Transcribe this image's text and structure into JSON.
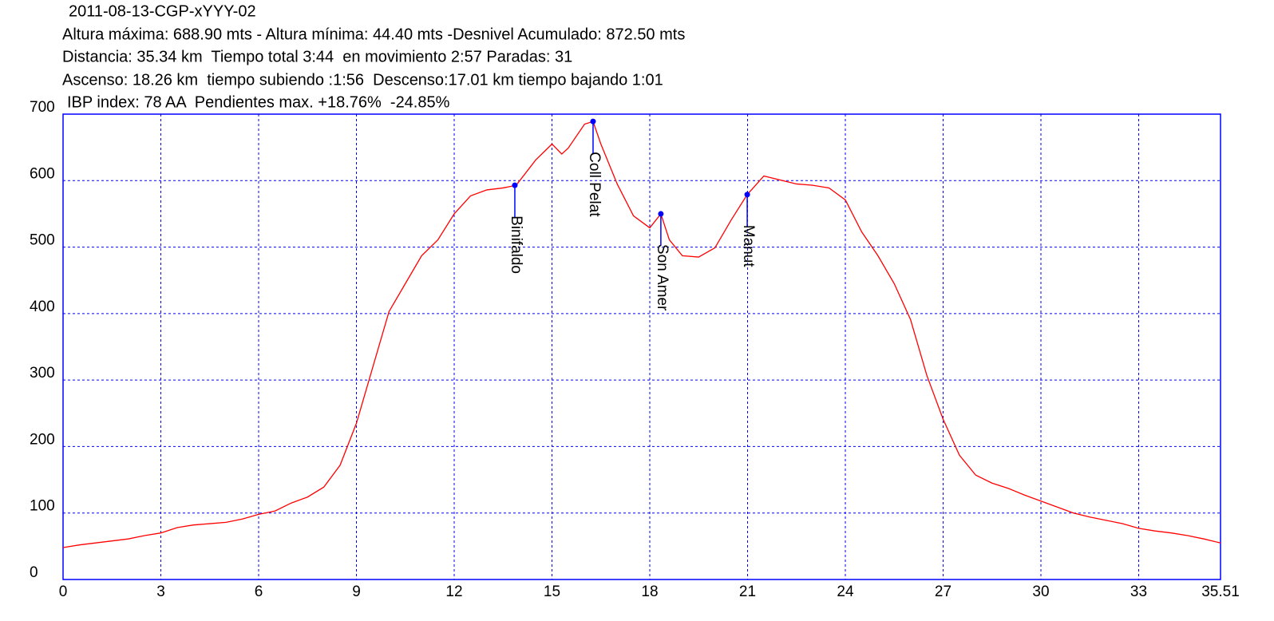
{
  "chart_data": {
    "type": "line",
    "title": "2011-08-13-CGP-xYYY-02",
    "subtitle_lines": [
      "Altura máxima: 688.90 mts - Altura mínima: 44.40 mts -Desnivel Acumulado: 872.50 mts",
      "Distancia: 35.34 km  Tiempo total 3:44  en movimiento 2:57 Paradas: 31",
      "Ascenso: 18.26 km  tiempo subiendo :1:56  Descenso:17.01 km tiempo bajando 1:01",
      "IBP index: 78 AA  Pendientes max. +18.76%  -24.85%"
    ],
    "x": [
      0,
      0.5,
      1,
      1.5,
      2,
      2.5,
      3,
      3.5,
      4,
      4.5,
      5,
      5.5,
      6,
      6.5,
      7,
      7.5,
      8,
      8.5,
      9,
      9.5,
      10,
      10.5,
      11,
      11.5,
      12,
      12.5,
      13,
      13.5,
      13.9,
      14.5,
      15,
      15.3,
      15.5,
      16,
      16.26,
      16.5,
      17,
      17.5,
      18,
      18.34,
      18.6,
      19,
      19.5,
      20,
      20.5,
      20.99,
      21.5,
      22,
      22.5,
      23,
      23.5,
      24,
      24.5,
      25,
      25.5,
      26,
      26.5,
      27,
      27.5,
      28,
      28.5,
      29,
      29.5,
      30,
      30.5,
      31,
      31.5,
      32,
      32.5,
      33,
      33.5,
      34,
      34.5,
      35,
      35.51
    ],
    "series": [
      {
        "color": "#ff0000",
        "values": [
          48,
          52,
          55,
          58,
          61,
          66,
          70,
          78,
          82,
          84,
          86,
          91,
          98,
          103,
          115,
          124,
          139,
          172,
          235,
          319,
          403,
          445,
          487,
          511,
          550,
          577,
          586,
          589,
          593,
          631,
          655,
          640,
          649,
          685,
          689,
          655,
          595,
          547,
          529,
          550,
          511,
          487,
          485,
          499,
          541,
          579,
          607,
          601,
          595,
          593,
          589,
          571,
          523,
          487,
          445,
          391,
          307,
          241,
          187,
          157,
          145,
          137,
          127,
          118,
          109,
          100,
          94,
          89,
          84,
          77,
          73,
          70,
          66,
          61,
          55
        ]
      }
    ],
    "annotations": [
      {
        "label": "Binifaldo",
        "x": 13.86,
        "y": 593
      },
      {
        "label": "Coll Pelat",
        "x": 16.26,
        "y": 689
      },
      {
        "label": "Son Amer",
        "x": 18.34,
        "y": 550
      },
      {
        "label": "Manut",
        "x": 20.99,
        "y": 579
      }
    ],
    "annotation_color": "#0000ff",
    "xlim": [
      0,
      35.51
    ],
    "ylim": [
      0,
      700
    ],
    "xticks": [
      0,
      3,
      6,
      9,
      12,
      15,
      18,
      21,
      24,
      27,
      30,
      33,
      35.51
    ],
    "yticks": [
      0,
      100,
      200,
      300,
      400,
      500,
      600,
      700
    ],
    "grid": true,
    "grid_color": "#0000ff",
    "frame_color": "#0000ff"
  }
}
